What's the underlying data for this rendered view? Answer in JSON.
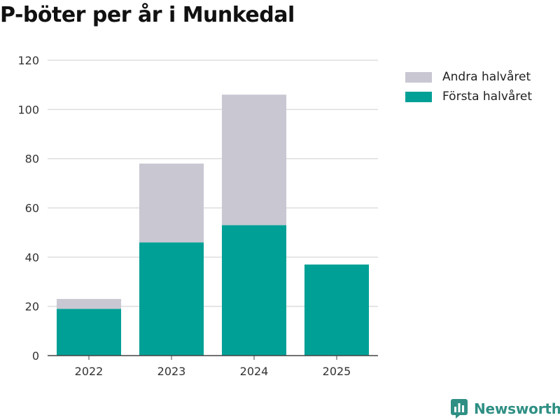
{
  "chart_data": {
    "type": "bar",
    "stacked": true,
    "title": "P-böter per år i Munkedal",
    "categories": [
      "2022",
      "2023",
      "2024",
      "2025"
    ],
    "series": [
      {
        "name": "Första halvåret",
        "values": [
          19,
          46,
          53,
          37
        ],
        "color": "#00a096"
      },
      {
        "name": "Andra halvåret",
        "values": [
          4,
          32,
          53,
          0
        ],
        "color": "#c8c7d2"
      }
    ],
    "yticks": [
      0,
      20,
      40,
      60,
      80,
      100,
      120
    ],
    "ylim": [
      0,
      120
    ],
    "xlabel": "",
    "ylabel": "",
    "grid": true,
    "legend_position": "top-right"
  },
  "legend": [
    {
      "label": "Andra halvåret",
      "color": "#c8c7d2"
    },
    {
      "label": "Första halvåret",
      "color": "#00a096"
    }
  ],
  "brand": {
    "name": "Newsworthy",
    "color": "#2f8f84"
  }
}
